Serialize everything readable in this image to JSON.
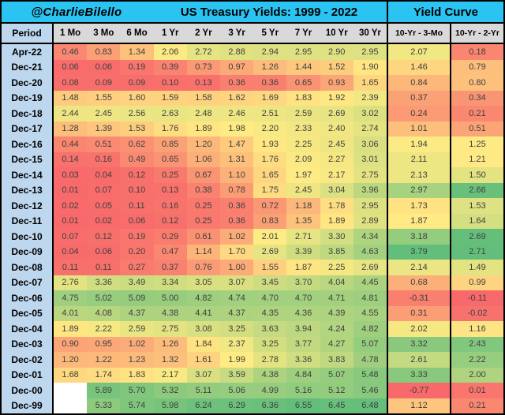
{
  "header": {
    "credit": "@CharlieBilello",
    "title": "US Treasury Yields: 1999 - 2022",
    "curve_group_title": "Yield Curve",
    "period_label": "Period"
  },
  "colors": {
    "title_bg": "#2bc4f2",
    "header_bg": "#d9d9d9",
    "period_bg": "#bdd7ee",
    "border": "#000000",
    "scale_min": "#F8696B",
    "scale_mid": "#FFEB84",
    "scale_max": "#63BE7B"
  },
  "chart_data": {
    "type": "heatmap",
    "title": "US Treasury Yields: 1999 - 2022",
    "credit": "@CharlieBilello",
    "curve_group_title": "Yield Curve",
    "row_header": "Period",
    "yield_columns": [
      "1 Mo",
      "3 Mo",
      "6 Mo",
      "1 Yr",
      "2 Yr",
      "3 Yr",
      "5 Yr",
      "7 Yr",
      "10 Yr",
      "30 Yr"
    ],
    "curve_columns": [
      "10-Yr - 3-Mo",
      "10-Yr - 2-Yr"
    ],
    "colormap": {
      "min_color": "#F8696B",
      "mid_color": "#FFEB84",
      "max_color": "#63BE7B",
      "scales": {
        "yields": {
          "min": 0.01,
          "mid": 1.97,
          "max": 6.55
        },
        "curve0": {
          "min": -0.77,
          "mid": 1.9,
          "max": 3.79
        },
        "curve1": {
          "min": -0.11,
          "mid": 1.23,
          "max": 2.71
        }
      }
    },
    "rows": [
      {
        "period": "Apr-22",
        "yields": [
          0.46,
          0.83,
          1.34,
          2.06,
          2.72,
          2.88,
          2.94,
          2.95,
          2.9,
          2.95
        ],
        "curve": [
          2.07,
          0.18
        ]
      },
      {
        "period": "Dec-21",
        "yields": [
          0.06,
          0.06,
          0.19,
          0.39,
          0.73,
          0.97,
          1.26,
          1.44,
          1.52,
          1.9
        ],
        "curve": [
          1.46,
          0.79
        ]
      },
      {
        "period": "Dec-20",
        "yields": [
          0.08,
          0.09,
          0.09,
          0.1,
          0.13,
          0.36,
          0.36,
          0.65,
          0.93,
          1.65
        ],
        "curve": [
          0.84,
          0.8
        ]
      },
      {
        "period": "Dec-19",
        "yields": [
          1.48,
          1.55,
          1.6,
          1.59,
          1.58,
          1.62,
          1.69,
          1.83,
          1.92,
          2.39
        ],
        "curve": [
          0.37,
          0.34
        ]
      },
      {
        "period": "Dec-18",
        "yields": [
          2.44,
          2.45,
          2.56,
          2.63,
          2.48,
          2.46,
          2.51,
          2.59,
          2.69,
          3.02
        ],
        "curve": [
          0.24,
          0.21
        ]
      },
      {
        "period": "Dec-17",
        "yields": [
          1.28,
          1.39,
          1.53,
          1.76,
          1.89,
          1.98,
          2.2,
          2.33,
          2.4,
          2.74
        ],
        "curve": [
          1.01,
          0.51
        ]
      },
      {
        "period": "Dec-16",
        "yields": [
          0.44,
          0.51,
          0.62,
          0.85,
          1.2,
          1.47,
          1.93,
          2.25,
          2.45,
          3.06
        ],
        "curve": [
          1.94,
          1.25
        ]
      },
      {
        "period": "Dec-15",
        "yields": [
          0.14,
          0.16,
          0.49,
          0.65,
          1.06,
          1.31,
          1.76,
          2.09,
          2.27,
          3.01
        ],
        "curve": [
          2.11,
          1.21
        ]
      },
      {
        "period": "Dec-14",
        "yields": [
          0.03,
          0.04,
          0.12,
          0.25,
          0.67,
          1.1,
          1.65,
          1.97,
          2.17,
          2.75
        ],
        "curve": [
          2.13,
          1.5
        ]
      },
      {
        "period": "Dec-13",
        "yields": [
          0.01,
          0.07,
          0.1,
          0.13,
          0.38,
          0.78,
          1.75,
          2.45,
          3.04,
          3.96
        ],
        "curve": [
          2.97,
          2.66
        ]
      },
      {
        "period": "Dec-12",
        "yields": [
          0.02,
          0.05,
          0.11,
          0.16,
          0.25,
          0.36,
          0.72,
          1.18,
          1.78,
          2.95
        ],
        "curve": [
          1.73,
          1.53
        ]
      },
      {
        "period": "Dec-11",
        "yields": [
          0.01,
          0.02,
          0.06,
          0.12,
          0.25,
          0.36,
          0.83,
          1.35,
          1.89,
          2.89
        ],
        "curve": [
          1.87,
          1.64
        ]
      },
      {
        "period": "Dec-10",
        "yields": [
          0.07,
          0.12,
          0.19,
          0.29,
          0.61,
          1.02,
          2.01,
          2.71,
          3.3,
          4.34
        ],
        "curve": [
          3.18,
          2.69
        ]
      },
      {
        "period": "Dec-09",
        "yields": [
          0.04,
          0.06,
          0.2,
          0.47,
          1.14,
          1.7,
          2.69,
          3.39,
          3.85,
          4.63
        ],
        "curve": [
          3.79,
          2.71
        ]
      },
      {
        "period": "Dec-08",
        "yields": [
          0.11,
          0.11,
          0.27,
          0.37,
          0.76,
          1.0,
          1.55,
          1.87,
          2.25,
          2.69
        ],
        "curve": [
          2.14,
          1.49
        ]
      },
      {
        "period": "Dec-07",
        "yields": [
          2.76,
          3.36,
          3.49,
          3.34,
          3.05,
          3.07,
          3.45,
          3.7,
          4.04,
          4.45
        ],
        "curve": [
          0.68,
          0.99
        ]
      },
      {
        "period": "Dec-06",
        "yields": [
          4.75,
          5.02,
          5.09,
          5.0,
          4.82,
          4.74,
          4.7,
          4.7,
          4.71,
          4.81
        ],
        "curve": [
          -0.31,
          -0.11
        ]
      },
      {
        "period": "Dec-05",
        "yields": [
          4.01,
          4.08,
          4.37,
          4.38,
          4.41,
          4.37,
          4.35,
          4.36,
          4.39,
          4.55
        ],
        "curve": [
          0.31,
          -0.02
        ]
      },
      {
        "period": "Dec-04",
        "yields": [
          1.89,
          2.22,
          2.59,
          2.75,
          3.08,
          3.25,
          3.63,
          3.94,
          4.24,
          4.82
        ],
        "curve": [
          2.02,
          1.16
        ]
      },
      {
        "period": "Dec-03",
        "yields": [
          0.9,
          0.95,
          1.02,
          1.26,
          1.84,
          2.37,
          3.25,
          3.77,
          4.27,
          5.07
        ],
        "curve": [
          3.32,
          2.43
        ]
      },
      {
        "period": "Dec-02",
        "yields": [
          1.2,
          1.22,
          1.23,
          1.32,
          1.61,
          1.99,
          2.78,
          3.36,
          3.83,
          4.78
        ],
        "curve": [
          2.61,
          2.22
        ]
      },
      {
        "period": "Dec-01",
        "yields": [
          1.68,
          1.74,
          1.83,
          2.17,
          3.07,
          3.59,
          4.38,
          4.84,
          5.07,
          5.48
        ],
        "curve": [
          3.33,
          2.0
        ]
      },
      {
        "period": "Dec-00",
        "yields": [
          null,
          5.89,
          5.7,
          5.32,
          5.11,
          5.06,
          4.99,
          5.16,
          5.12,
          5.46
        ],
        "curve": [
          -0.77,
          0.01
        ]
      },
      {
        "period": "Dec-99",
        "yields": [
          null,
          5.33,
          5.74,
          5.98,
          6.24,
          6.29,
          6.36,
          6.55,
          6.45,
          6.48
        ],
        "curve": [
          1.12,
          0.21
        ]
      }
    ]
  }
}
